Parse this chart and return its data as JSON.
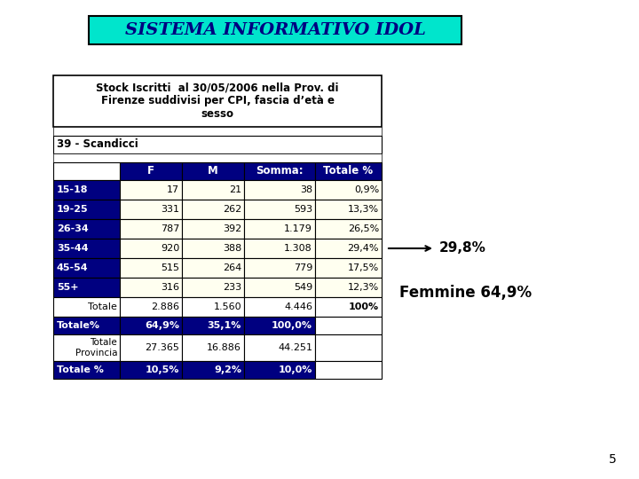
{
  "title": "SISTEMA INFORMATIVO IDOL",
  "title_bg": "#00E5CC",
  "title_color": "#000080",
  "table_title_line1": "Stock Iscritti  al 30/05/2006 nella Prov. di",
  "table_title_line2": "Firenze suddivisi per CPI, fascia d’età e",
  "table_title_line3": "sesso",
  "section_label": "39 - Scandicci",
  "headers": [
    "",
    "F",
    "M",
    "Somma:",
    "Totale %"
  ],
  "rows": [
    [
      "15-18",
      "17",
      "21",
      "38",
      "0,9%"
    ],
    [
      "19-25",
      "331",
      "262",
      "593",
      "13,3%"
    ],
    [
      "26-34",
      "787",
      "392",
      "1.179",
      "26,5%"
    ],
    [
      "35-44",
      "920",
      "388",
      "1.308",
      "29,4%"
    ],
    [
      "45-54",
      "515",
      "264",
      "779",
      "17,5%"
    ],
    [
      "55+",
      "316",
      "233",
      "549",
      "12,3%"
    ]
  ],
  "totale_row": [
    "Totale",
    "2.886",
    "1.560",
    "4.446",
    "100%"
  ],
  "totale_pct_row": [
    "Totale%",
    "64,9%",
    "35,1%",
    "100,0%",
    ""
  ],
  "totale_provincia_row": [
    "Totale\nProvincia",
    "27.365",
    "16.886",
    "44.251",
    ""
  ],
  "totale_pct2_row": [
    "Totale %",
    "10,5%",
    "9,2%",
    "10,0%",
    ""
  ],
  "arrow_label": "29,8%",
  "femmine_label": "Femmine 64,9%",
  "page_number": "5",
  "header_bg": "#000080",
  "header_fg": "#FFFFFF",
  "row_label_bg": "#000080",
  "row_label_fg": "#FFFFFF",
  "data_bg": "#FFFFF0",
  "totale_bg": "#FFFFFF",
  "totale_pct_bg": "#000080",
  "totale_pct_fg": "#FFFFFF"
}
